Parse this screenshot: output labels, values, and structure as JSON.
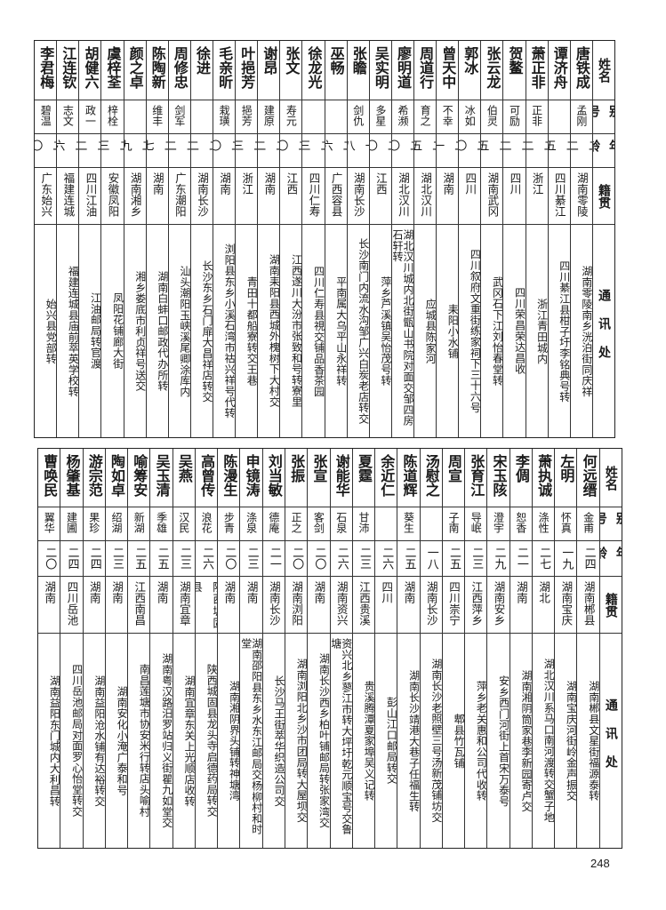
{
  "headers": {
    "name": "姓名",
    "alias": "别号",
    "age": "年龄",
    "origin": "籍贯",
    "address": "通讯处"
  },
  "tables": [
    {
      "rows": [
        {
          "name": "唐铁成",
          "alias": "孟刚",
          "age": "二二",
          "origin": "湖南零陵",
          "address": "湖南零陵南乡洸泊街同庆祥"
        },
        {
          "name": "谭济舟",
          "alias": "",
          "age": "二五",
          "origin": "四川綦江",
          "address": "四川綦江县柑子圩李铭典号转"
        },
        {
          "name": "萧正非",
          "alias": "正非",
          "age": "二二",
          "origin": "浙江",
          "address": "浙江青田城内"
        },
        {
          "name": "贺鳌",
          "alias": "可励",
          "age": "二二",
          "origin": "四川",
          "address": "四川荣昌荣达昌收"
        },
        {
          "name": "张云龙",
          "alias": "伯灵",
          "age": "二五",
          "origin": "湖南武冈",
          "address": "武冈石下江刘怡春堂转"
        },
        {
          "name": "郭冰",
          "alias": "冰如",
          "age": "二〇",
          "origin": "四川",
          "address": "四川叙府文重街练家祠下三十六号"
        },
        {
          "name": "曾天中",
          "alias": "不幸",
          "age": "二一",
          "origin": "湖南",
          "address": "耒阳小水铺"
        },
        {
          "name": "周道行",
          "alias": "育之",
          "age": "二五",
          "origin": "湖北汉川",
          "address": "应城县陈家河"
        },
        {
          "name": "廖明道",
          "alias": "希濒",
          "age": "二〇",
          "origin": "湖北汉川",
          "address": "湖北汉川城内北街甑山书院对面交邹四房石轩转"
        },
        {
          "name": "吴实明",
          "alias": "多星",
          "age": "二〇",
          "origin": "江西",
          "address": "萍乡芦溪镇吴怡茂号转"
        },
        {
          "name": "张瞻",
          "alias": "剑仇",
          "age": "一八",
          "origin": "湖南长沙",
          "address": "长沙南门内流水沟邹广兴白炭老店转交"
        },
        {
          "name": "巫畅",
          "alias": "",
          "age": "二六",
          "origin": "广西容县",
          "address": "平南属大乌平山永祥转"
        },
        {
          "name": "徐龙光",
          "alias": "",
          "age": "二三",
          "origin": "四川仁寿",
          "address": "四川仁寿县視交铺品香茶园"
        },
        {
          "name": "张文",
          "alias": "寿元",
          "age": "二〇",
          "origin": "江西",
          "address": "江西遂川大汾市张致和号转寮里"
        },
        {
          "name": "谢昂",
          "alias": "建原",
          "age": "二二",
          "origin": "湖南",
          "address": "湖南耒阳县西城外槐树下大村交"
        },
        {
          "name": "叶挹芳",
          "alias": "挹芳",
          "age": "二三",
          "origin": "浙江",
          "address": "青田十都船寮转交王巷"
        },
        {
          "name": "毛亲昕",
          "alias": "栽璜",
          "age": "二〇",
          "origin": "湖南",
          "address": "浏阳县东乡小溪石湾市祜兴祥号代转"
        },
        {
          "name": "徐进",
          "alias": "",
          "age": "二二",
          "origin": "湖南长沙",
          "address": "长沙东乡石门扉大昌祥店转交"
        },
        {
          "name": "周修忠",
          "alias": "剑军",
          "age": "二二",
          "origin": "广东潮阳",
          "address": "汕头潮阳玉峡溪尾卿涂库内"
        },
        {
          "name": "陈陶新",
          "alias": "维丰",
          "age": "二七",
          "origin": "湖南",
          "address": "湖南白蚌口邮政代办所转"
        },
        {
          "name": "颜之卓",
          "alias": "",
          "age": "二九",
          "origin": "湖南湘乡",
          "address": "湘乡娄底市利贞祥号送交"
        },
        {
          "name": "虞梓荃",
          "alias": "梓栓",
          "age": "二三",
          "origin": "安徽凤阳",
          "address": "凤阳花铺廊大街"
        },
        {
          "name": "胡健六",
          "alias": "政一",
          "age": "二二",
          "origin": "四川江油",
          "address": "江油邮局转官渡"
        },
        {
          "name": "江连钦",
          "alias": "志文",
          "age": "二六",
          "origin": "福建连城",
          "address": "福建连城县庙前萃英学校转"
        },
        {
          "name": "李君梅",
          "alias": "碧温",
          "age": "二〇",
          "origin": "广东始兴",
          "address": "始兴县党部转"
        }
      ]
    },
    {
      "rows": [
        {
          "name": "何远缙",
          "alias": "金甫",
          "age": "二四",
          "origin": "湖南郴县",
          "address": "湖南郴县文星街福源泰转"
        },
        {
          "name": "左明",
          "alias": "怀真",
          "age": "一九",
          "origin": "湖南宝庆",
          "address": "湖南宝庆河街岭金声振交"
        },
        {
          "name": "萧执诚",
          "alias": "涤性",
          "age": "二七",
          "origin": "湖北",
          "address": "湖北汉川系马口南河渡转交蟹子地"
        },
        {
          "name": "李倜",
          "alias": "恕香",
          "age": "二一",
          "origin": "湖南",
          "address": "湖南湘阴筒家巷李新园寄卢交"
        },
        {
          "name": "宋玉陔",
          "alias": "澄宇",
          "age": "二九",
          "origin": "湖南安乡",
          "address": "安乡西门河街上首宋万泰号"
        },
        {
          "name": "张育江",
          "alias": "导岷",
          "age": "二三",
          "origin": "江西萍乡",
          "address": "萍乡老关惠和公司代收转"
        },
        {
          "name": "周宣",
          "alias": "子南",
          "age": "二五",
          "origin": "四川崇宁",
          "address": "郫县竹瓦铺"
        },
        {
          "name": "汤慰之",
          "alias": "",
          "age": "一八",
          "origin": "湖南长沙",
          "address": "湖南长沙老照壁三号汤新茂铺坊交"
        },
        {
          "name": "陈道辉",
          "alias": "葵生",
          "age": "二五",
          "origin": "湖南",
          "address": "湖南长沙靖港大巷子任福生转"
        },
        {
          "name": "余近仁",
          "alias": "",
          "age": "二六",
          "origin": "四川",
          "address": "彭山江口邮局转交"
        },
        {
          "name": "夏霆",
          "alias": "甘沛",
          "age": "二三",
          "origin": "江西贵溪",
          "address": "贵溪腾潭夏家埠吴义记转"
        },
        {
          "name": "谢能华",
          "alias": "石泉",
          "age": "二六",
          "origin": "湖南资兴",
          "address": "资兴北乡蓼江市转大坪圩乾元顺宝号交鲁塘"
        },
        {
          "name": "张宣",
          "alias": "客剑",
          "age": "二〇",
          "origin": "湖南",
          "address": "湖南长沙西乡柏叶铺邮局转张家湾交"
        },
        {
          "name": "张振",
          "alias": "正之",
          "age": "二〇",
          "origin": "湖南浏阳",
          "address": "湖南浏阳北乡沙市团局转大屋坝交"
        },
        {
          "name": "刘当敏",
          "alias": "德庵",
          "age": "二一",
          "origin": "湖南长沙",
          "address": "长沙马王街萃华织造公司交"
        },
        {
          "name": "申镜涛",
          "alias": "涤泉",
          "age": "二三",
          "origin": "湖南",
          "address": "湖南邵阳县东乡水东江邮局交杨柳村和时堂"
        },
        {
          "name": "陈漫生",
          "alias": "步青",
          "age": "二〇",
          "origin": "湖南",
          "address": "湖南湘阴界头铺转神塘湾"
        },
        {
          "name": "高曾传",
          "alias": "浪花",
          "age": "二六",
          "origin": "陕西城固县",
          "address": "陕西城固县龙头寺启德药局转交"
        },
        {
          "name": "吴燕",
          "alias": "汉民",
          "age": "二三",
          "origin": "湖南宜章",
          "address": "湖南宜章东关上光顺店收转"
        },
        {
          "name": "吴玉清",
          "alias": "季雄",
          "age": "二五",
          "origin": "湖南",
          "address": "湖南粤汉路汨罗站归义街瞿九如堂交"
        },
        {
          "name": "喻筹安",
          "alias": "新湖",
          "age": "二五",
          "origin": "江西南昌",
          "address": "南昌莲塘市协安米行转店头喻村"
        },
        {
          "name": "陶如卓",
          "alias": "绍湖",
          "age": "二三",
          "origin": "湖南",
          "address": "湖南安化小淹广泰和号"
        },
        {
          "name": "游宗范",
          "alias": "果珍",
          "age": "二四",
          "origin": "湖南",
          "address": "湖南益阳沧水铺有达裕转交"
        },
        {
          "name": "杨肇基",
          "alias": "建圃",
          "age": "二四",
          "origin": "四川岳池",
          "address": "四川岳池邮局对面罗心怡堂转交"
        },
        {
          "name": "曹唤民",
          "alias": "翼华",
          "age": "二〇",
          "origin": "湖南",
          "address": "湖南益阳东门城内大利昌转"
        }
      ]
    }
  ],
  "page_number": "248"
}
